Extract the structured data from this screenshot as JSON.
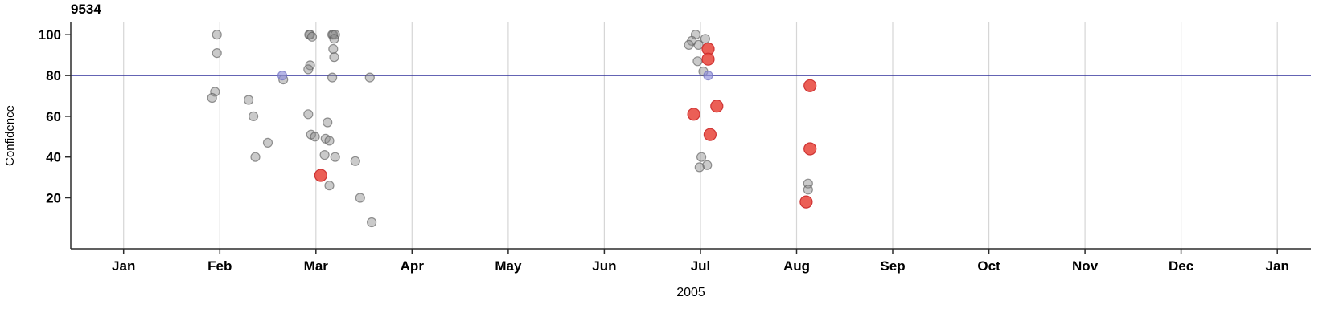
{
  "chart_data": {
    "type": "scatter",
    "title": "9534",
    "xlabel": "2005",
    "ylabel": "Confidence",
    "xlim": [
      -0.55,
      12.35
    ],
    "ylim": [
      -5,
      106
    ],
    "y_ticks": [
      20,
      40,
      60,
      80,
      100
    ],
    "x_ticks": [
      {
        "label": "Jan",
        "pos": 0
      },
      {
        "label": "Feb",
        "pos": 1
      },
      {
        "label": "Mar",
        "pos": 2
      },
      {
        "label": "Apr",
        "pos": 3
      },
      {
        "label": "May",
        "pos": 4
      },
      {
        "label": "Jun",
        "pos": 5
      },
      {
        "label": "Jul",
        "pos": 6
      },
      {
        "label": "Aug",
        "pos": 7
      },
      {
        "label": "Sep",
        "pos": 8
      },
      {
        "label": "Oct",
        "pos": 9
      },
      {
        "label": "Nov",
        "pos": 10
      },
      {
        "label": "Dec",
        "pos": 11
      },
      {
        "label": "Jan",
        "pos": 12
      }
    ],
    "grid": "vertical-months-only",
    "legend": "none",
    "colors": {
      "grid": "#d6d6d6",
      "axis": "#2b2b2b",
      "background": "#ffffff"
    },
    "reference_line": {
      "y": 80,
      "color": "#31319c"
    },
    "series": [
      {
        "name": "detections-unflagged",
        "point_name": "gray-data-point",
        "color": "#8a8a8a",
        "stroke": "#555555",
        "fill_opacity": 0.45,
        "stroke_opacity": 0.6,
        "radius": 5.5,
        "points": [
          [
            0.97,
            100
          ],
          [
            0.97,
            91
          ],
          [
            0.95,
            72
          ],
          [
            0.92,
            69
          ],
          [
            1.3,
            68
          ],
          [
            1.35,
            60
          ],
          [
            1.37,
            40
          ],
          [
            1.5,
            47
          ],
          [
            1.66,
            78
          ],
          [
            1.93,
            100
          ],
          [
            1.94,
            100
          ],
          [
            1.96,
            99
          ],
          [
            1.94,
            85
          ],
          [
            1.92,
            83
          ],
          [
            2.17,
            100
          ],
          [
            2.18,
            100
          ],
          [
            2.2,
            100
          ],
          [
            2.19,
            98
          ],
          [
            2.18,
            93
          ],
          [
            2.19,
            89
          ],
          [
            2.17,
            79
          ],
          [
            1.92,
            61
          ],
          [
            2.12,
            57
          ],
          [
            1.95,
            51
          ],
          [
            1.99,
            50
          ],
          [
            2.1,
            49
          ],
          [
            2.14,
            48
          ],
          [
            2.09,
            41
          ],
          [
            2.2,
            40
          ],
          [
            2.14,
            26
          ],
          [
            2.41,
            38
          ],
          [
            2.46,
            20
          ],
          [
            2.56,
            79
          ],
          [
            2.58,
            8
          ],
          [
            5.95,
            100
          ],
          [
            5.91,
            97
          ],
          [
            5.88,
            95
          ],
          [
            5.98,
            95
          ],
          [
            6.05,
            98
          ],
          [
            5.97,
            87
          ],
          [
            6.03,
            82
          ],
          [
            6.01,
            40
          ],
          [
            6.07,
            36
          ],
          [
            5.99,
            35
          ],
          [
            7.12,
            27
          ],
          [
            7.12,
            24
          ]
        ]
      },
      {
        "name": "detections-on-threshold",
        "point_name": "blue-data-point",
        "color": "#8d8dd8",
        "stroke": "#7070c0",
        "fill_opacity": 0.65,
        "stroke_opacity": 0.7,
        "radius": 5.5,
        "points": [
          [
            1.65,
            80
          ],
          [
            6.08,
            80
          ]
        ]
      },
      {
        "name": "detections-flagged",
        "point_name": "red-data-point",
        "color": "#e84338",
        "stroke": "#cc2d2d",
        "fill_opacity": 0.85,
        "stroke_opacity": 0.95,
        "radius": 7.5,
        "points": [
          [
            2.05,
            31
          ],
          [
            5.93,
            61
          ],
          [
            6.08,
            93
          ],
          [
            6.08,
            88
          ],
          [
            6.1,
            51
          ],
          [
            6.17,
            65
          ],
          [
            7.1,
            18
          ],
          [
            7.14,
            75
          ],
          [
            7.14,
            44
          ]
        ]
      }
    ]
  }
}
